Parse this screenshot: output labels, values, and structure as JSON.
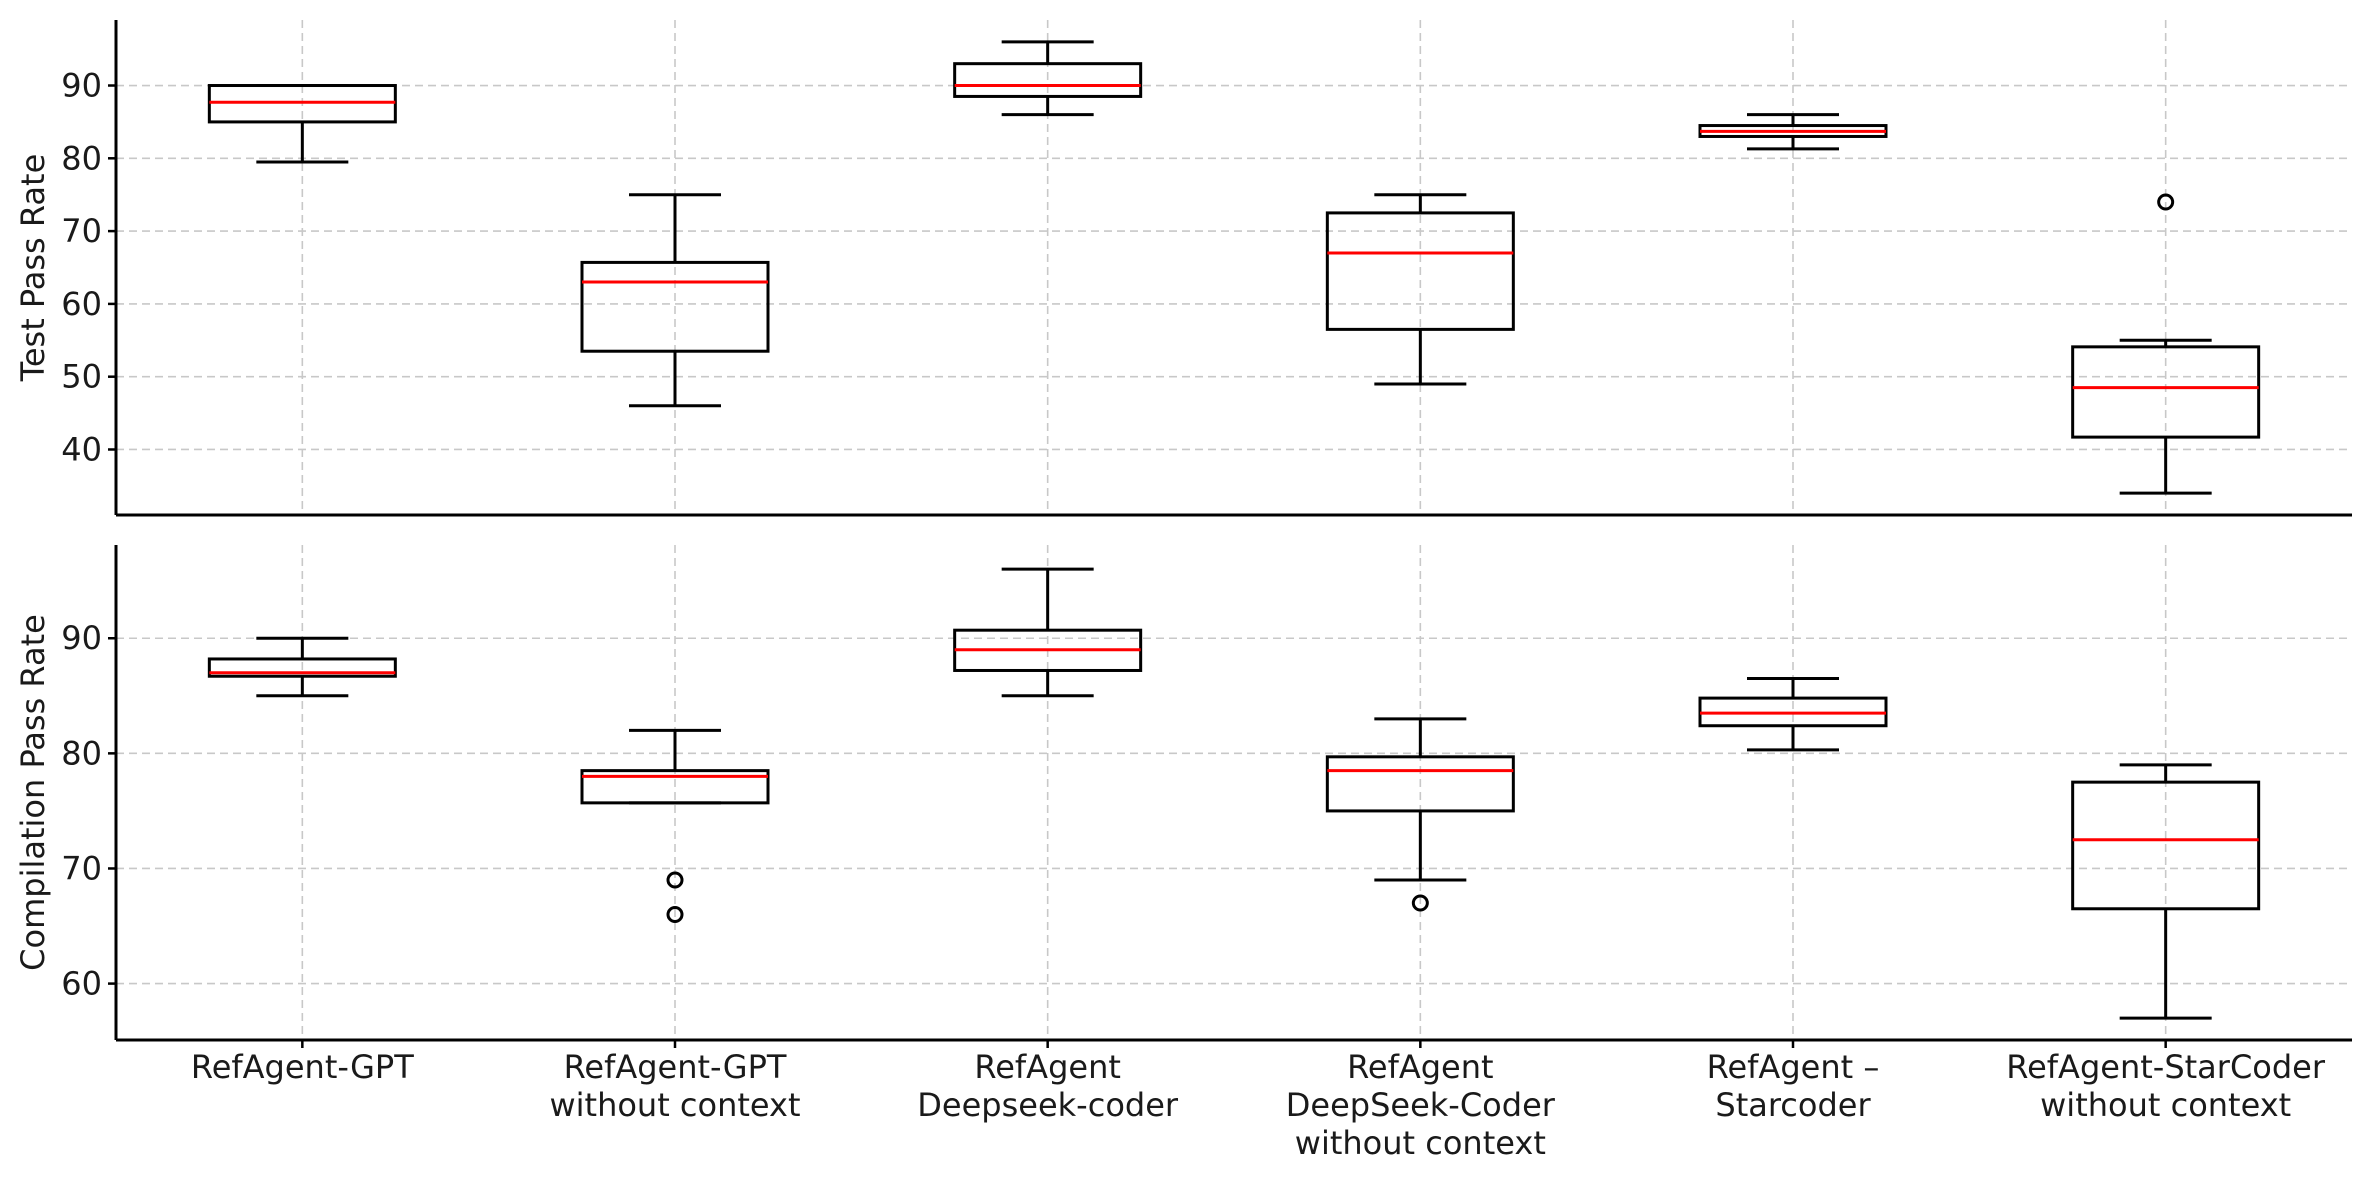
{
  "chart_data": [
    {
      "type": "box",
      "ylabel": "Test Pass Rate",
      "ylim": [
        31,
        99
      ],
      "yticks": [
        40,
        50,
        60,
        70,
        80,
        90
      ],
      "grid": true,
      "categories": [
        "RefAgent-GPT",
        "RefAgent-GPT\nwithout context",
        "RefAgent\nDeepseek-coder",
        "RefAgent\nDeepSeek-Coder\nwithout context",
        "RefAgent –\nStarcoder",
        "RefAgent-StarCoder\nwithout context"
      ],
      "boxes": [
        {
          "whislo": 79.5,
          "q1": 85,
          "med": 87.7,
          "q3": 90,
          "whishi": 90,
          "fliers": []
        },
        {
          "whislo": 46,
          "q1": 53.5,
          "med": 63,
          "q3": 65.7,
          "whishi": 75,
          "fliers": []
        },
        {
          "whislo": 86,
          "q1": 88.5,
          "med": 90,
          "q3": 93,
          "whishi": 96,
          "fliers": []
        },
        {
          "whislo": 49,
          "q1": 56.5,
          "med": 67,
          "q3": 72.5,
          "whishi": 75,
          "fliers": []
        },
        {
          "whislo": 81.3,
          "q1": 83,
          "med": 83.7,
          "q3": 84.5,
          "whishi": 86,
          "fliers": []
        },
        {
          "whislo": 34,
          "q1": 41.7,
          "med": 48.5,
          "q3": 54.1,
          "whishi": 55,
          "fliers": [
            74
          ]
        }
      ]
    },
    {
      "type": "box",
      "ylabel": "Compilation Pass Rate",
      "xlabel": "",
      "ylim": [
        55.1,
        98.1
      ],
      "yticks": [
        60,
        70,
        80,
        90
      ],
      "grid": true,
      "categories": [
        "RefAgent-GPT",
        "RefAgent-GPT\nwithout context",
        "RefAgent\nDeepseek-coder",
        "RefAgent\nDeepSeek-Coder\nwithout context",
        "RefAgent –\nStarcoder",
        "RefAgent-StarCoder\nwithout context"
      ],
      "boxes": [
        {
          "whislo": 85,
          "q1": 86.7,
          "med": 87,
          "q3": 88.2,
          "whishi": 90,
          "fliers": []
        },
        {
          "whislo": 75.7,
          "q1": 75.7,
          "med": 78,
          "q3": 78.5,
          "whishi": 82,
          "fliers": [
            69,
            66
          ]
        },
        {
          "whislo": 85,
          "q1": 87.2,
          "med": 89,
          "q3": 90.7,
          "whishi": 96,
          "fliers": []
        },
        {
          "whislo": 69,
          "q1": 75,
          "med": 78.5,
          "q3": 79.7,
          "whishi": 83,
          "fliers": [
            67
          ]
        },
        {
          "whislo": 80.3,
          "q1": 82.4,
          "med": 83.5,
          "q3": 84.8,
          "whishi": 86.5,
          "fliers": []
        },
        {
          "whislo": 57,
          "q1": 66.5,
          "med": 72.5,
          "q3": 77.5,
          "whishi": 79,
          "fliers": []
        }
      ]
    }
  ]
}
